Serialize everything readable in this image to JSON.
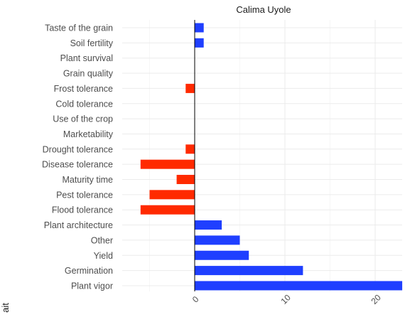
{
  "chart_data": {
    "type": "bar",
    "orientation": "horizontal",
    "title": "Calima Uyole",
    "ylabel": "ait",
    "xlabel": "",
    "categories": [
      "Taste of the grain",
      "Soil fertility",
      "Plant survival",
      "Grain quality",
      "Frost tolerance",
      "Cold tolerance",
      "Use of the crop",
      "Marketability",
      "Drought tolerance",
      "Disease tolerance",
      "Maturity time",
      "Pest tolerance",
      "Flood tolerance",
      "Plant architecture",
      "Other",
      "Yield",
      "Germination",
      "Plant vigor"
    ],
    "values": [
      1,
      1,
      0,
      0,
      -1,
      0,
      0,
      0,
      -1,
      -6,
      -2,
      -5,
      -6,
      3,
      5,
      6,
      12,
      23
    ],
    "xlim": [
      -8,
      23
    ],
    "xticks": [
      0,
      10,
      20
    ],
    "xtick_labels": [
      "0",
      "10",
      "20"
    ],
    "colors": {
      "positive": "#1f3fff",
      "negative": "#ff2a00"
    },
    "grid": true
  }
}
